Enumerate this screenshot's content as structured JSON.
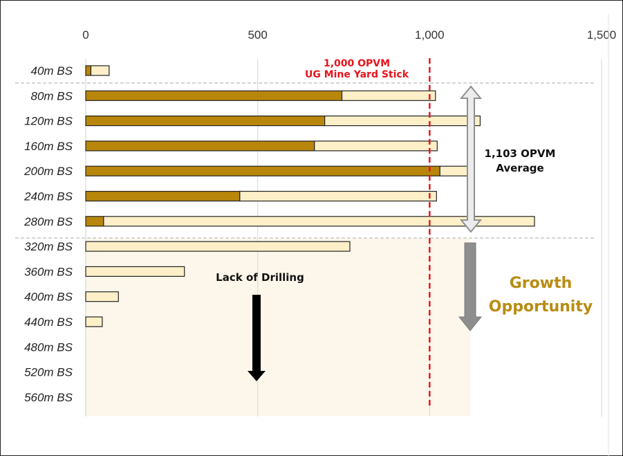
{
  "chart_data": {
    "type": "bar",
    "orientation": "horizontal",
    "stacked": true,
    "categories": [
      "40m BS",
      "80m BS",
      "120m BS",
      "160m BS",
      "200m BS",
      "240m BS",
      "280m BS",
      "320m BS",
      "360m BS",
      "400m BS",
      "440m BS",
      "480m BS",
      "520m BS",
      "560m BS"
    ],
    "series": [
      {
        "values": [
          15,
          745,
          695,
          665,
          1030,
          448,
          52,
          0,
          0,
          0,
          0,
          0,
          0,
          0
        ]
      },
      {
        "values": [
          53,
          272,
          452,
          357,
          90,
          572,
          1253,
          768,
          287,
          95,
          48,
          0,
          0,
          0
        ]
      }
    ],
    "x_ticks": [
      "0",
      "500",
      "1,000",
      "1,500"
    ],
    "xlim": [
      0,
      1500
    ],
    "x_axis_position": "top",
    "colors": {
      "dark": "#b8860b",
      "light": "#fdf0c9",
      "target_line": "#e8141b",
      "growth_text": "#b98c12",
      "region_fill": "#fcf7ea"
    },
    "reference_line": {
      "value": 1000,
      "label_lines": [
        "1,000 OPVM",
        "UG Mine Yard Stick"
      ]
    },
    "annotations": {
      "average_lines": [
        "1,103 OPVM",
        "Average"
      ],
      "lack_of_drilling": "Lack of Drilling",
      "growth_lines": [
        "Growth",
        "Opportunity"
      ]
    }
  }
}
